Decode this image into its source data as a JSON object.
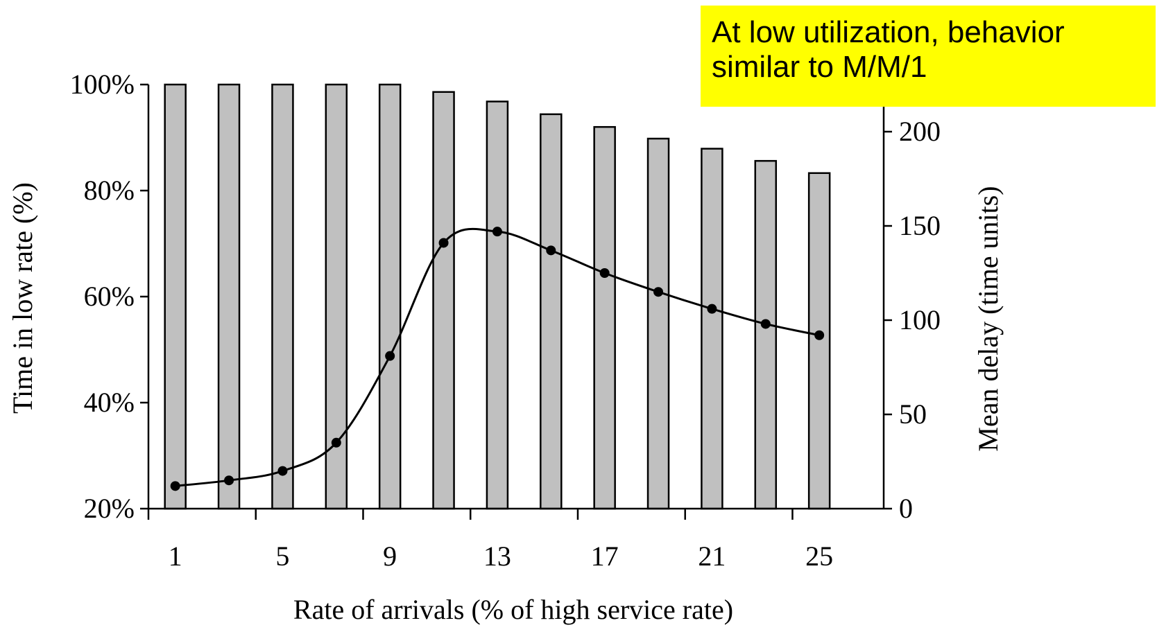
{
  "annotation": {
    "line1": "At low utilization, behavior",
    "line2": "similar to M/M/1",
    "background": "#ffff00"
  },
  "chart_data": {
    "type": "bar+line",
    "xlabel": "Rate of arrivals (% of high service rate)",
    "ylabel_left": "Time in low rate (%)",
    "ylabel_right": "Mean delay (time units)",
    "x_tick_labels": [
      "1",
      "5",
      "9",
      "13",
      "17",
      "21",
      "25"
    ],
    "y_left_tick_labels": [
      "20%",
      "40%",
      "60%",
      "80%",
      "100%"
    ],
    "y_right_tick_labels": [
      "0",
      "50",
      "100",
      "150",
      "200"
    ],
    "ylim_left": [
      20,
      100
    ],
    "ylim_right": [
      0,
      225
    ],
    "x": [
      1,
      3,
      5,
      7,
      9,
      11,
      13,
      15,
      17,
      19,
      21,
      23,
      25
    ],
    "series": [
      {
        "kind": "bar",
        "axis": "left",
        "color": "#c0c0c0",
        "values": [
          100,
          100,
          100,
          100,
          100,
          98.6,
          96.8,
          94.4,
          92.0,
          89.8,
          87.9,
          85.6,
          83.3
        ]
      },
      {
        "kind": "line",
        "axis": "right",
        "color": "#000000",
        "values": [
          12,
          15,
          20,
          35,
          81,
          141,
          147,
          137,
          125,
          115,
          106,
          98,
          92
        ]
      }
    ]
  }
}
